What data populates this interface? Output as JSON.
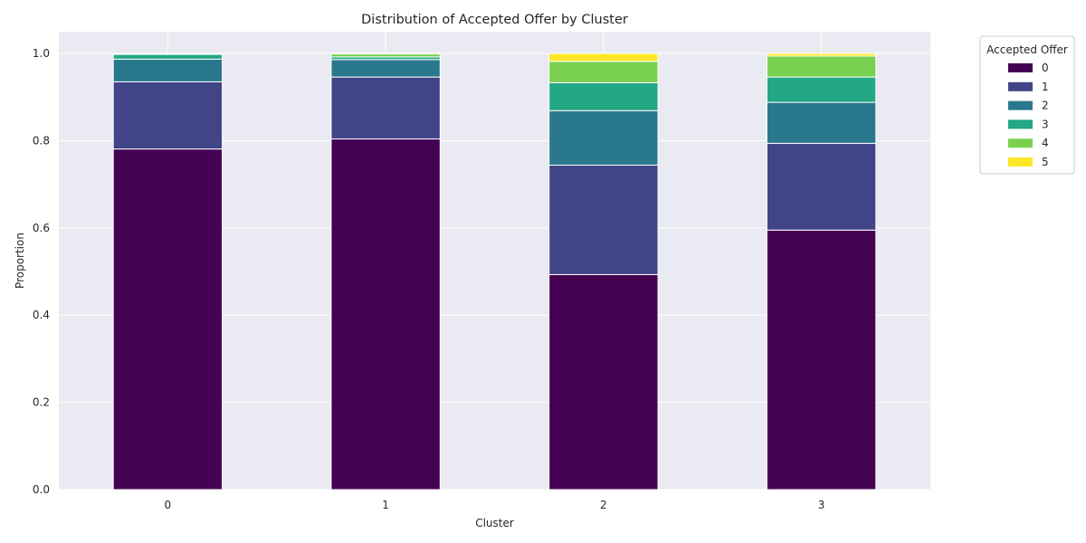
{
  "chart_data": {
    "type": "bar",
    "stacked": true,
    "title": "Distribution of Accepted Offer by Cluster",
    "xlabel": "Cluster",
    "ylabel": "Proportion",
    "categories": [
      "0",
      "1",
      "2",
      "3"
    ],
    "ylim": [
      0,
      1.05
    ],
    "yticks": [
      "0.0",
      "0.2",
      "0.4",
      "0.6",
      "0.8",
      "1.0"
    ],
    "grid": true,
    "legend": {
      "title": "Accepted Offer",
      "placement": "outside-top-right"
    },
    "series": [
      {
        "name": "0",
        "color": "#440154",
        "values": [
          0.781,
          0.804,
          0.493,
          0.595
        ]
      },
      {
        "name": "1",
        "color": "#414487",
        "values": [
          0.154,
          0.142,
          0.251,
          0.199
        ]
      },
      {
        "name": "2",
        "color": "#2a788e",
        "values": [
          0.052,
          0.04,
          0.125,
          0.094
        ]
      },
      {
        "name": "3",
        "color": "#22a884",
        "values": [
          0.011,
          0.006,
          0.064,
          0.058
        ]
      },
      {
        "name": "4",
        "color": "#7ad151",
        "values": [
          0.002,
          0.007,
          0.049,
          0.048
        ]
      },
      {
        "name": "5",
        "color": "#fde725",
        "values": [
          0.0,
          0.001,
          0.018,
          0.006
        ]
      }
    ]
  }
}
